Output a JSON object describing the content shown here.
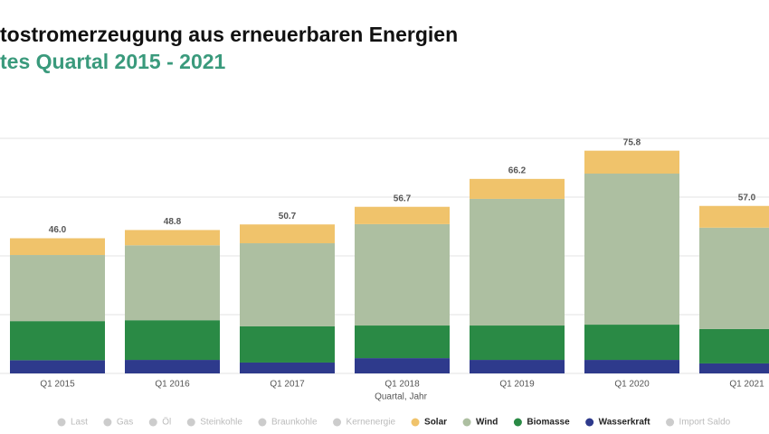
{
  "chart_data": {
    "type": "stacked-bar",
    "title": "tostromerzeugung aus erneuerbaren Energien",
    "subtitle": "tes Quartal 2015 - 2021",
    "x_label": "Quartal, Jahr",
    "categories": [
      "Q1 2015",
      "Q1 2016",
      "Q1 2017",
      "Q1 2018",
      "Q1 2019",
      "Q1 2020",
      "Q1 2021"
    ],
    "series": [
      {
        "name": "Solar",
        "color": "#f0c36b",
        "values": [
          5.7,
          5.2,
          6.4,
          5.9,
          6.8,
          7.8,
          7.4
        ]
      },
      {
        "name": "Wind",
        "color": "#adbfa1",
        "values": [
          22.5,
          25.5,
          28.3,
          34.5,
          43.1,
          51.4,
          34.5
        ]
      },
      {
        "name": "Biomasse",
        "color": "#2a8a45",
        "values": [
          13.3,
          13.5,
          12.3,
          11.1,
          11.7,
          12.0,
          11.7
        ]
      },
      {
        "name": "Wasserkraft",
        "color": "#2e3a8c",
        "values": [
          4.5,
          4.6,
          3.7,
          5.2,
          4.6,
          4.6,
          3.4
        ]
      }
    ],
    "totals": [
      46.0,
      48.8,
      50.7,
      56.7,
      66.2,
      75.8,
      57.0
    ],
    "total_labels": [
      "46.0",
      "48.8",
      "50.7",
      "56.7",
      "66.2",
      "75.8",
      "57.0"
    ],
    "legend_inactive_before": [
      "Last",
      "Gas",
      "Öl",
      "Steinkohle",
      "Braunkohle",
      "Kernenergie"
    ],
    "legend_inactive_after": [
      "Import Saldo"
    ],
    "inactive_color": "#cccccc",
    "ylim": [
      0,
      80
    ],
    "yticks": [
      0,
      20,
      40,
      60,
      80
    ],
    "grid": true
  }
}
